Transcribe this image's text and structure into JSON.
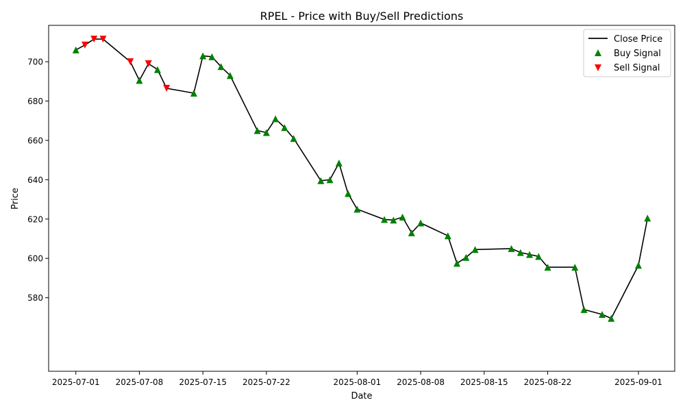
{
  "chart_data": {
    "type": "line",
    "title": "RPEL - Price with Buy/Sell Predictions",
    "xlabel": "Date",
    "ylabel": "Price",
    "xlim": [
      "2025-06-28",
      "2025-09-05"
    ],
    "ylim": [
      542.6,
      718.5
    ],
    "x_ticks": [
      "2025-07-01",
      "2025-07-08",
      "2025-07-15",
      "2025-07-22",
      "2025-08-01",
      "2025-08-08",
      "2025-08-15",
      "2025-08-22",
      "2025-09-01"
    ],
    "y_ticks": [
      580,
      600,
      620,
      640,
      660,
      680,
      700
    ],
    "grid": false,
    "legend": {
      "position": "upper right",
      "entries": [
        "Close Price",
        "Buy Signal",
        "Sell Signal"
      ]
    },
    "colors": {
      "line": "#000000",
      "buy": "#008000",
      "sell": "#ff0000"
    },
    "series": [
      {
        "name": "Close Price",
        "points": [
          {
            "date": "2025-07-01",
            "price": 706.0,
            "signal": "buy"
          },
          {
            "date": "2025-07-02",
            "price": 708.5,
            "signal": "sell"
          },
          {
            "date": "2025-07-03",
            "price": 711.5,
            "signal": "sell"
          },
          {
            "date": "2025-07-04",
            "price": 711.5,
            "signal": "sell"
          },
          {
            "date": "2025-07-07",
            "price": 700.0,
            "signal": "sell"
          },
          {
            "date": "2025-07-08",
            "price": 690.5,
            "signal": "buy"
          },
          {
            "date": "2025-07-09",
            "price": 699.0,
            "signal": "sell"
          },
          {
            "date": "2025-07-10",
            "price": 696.0,
            "signal": "buy"
          },
          {
            "date": "2025-07-11",
            "price": 686.5,
            "signal": "sell"
          },
          {
            "date": "2025-07-14",
            "price": 684.0,
            "signal": "buy"
          },
          {
            "date": "2025-07-15",
            "price": 703.0,
            "signal": "buy"
          },
          {
            "date": "2025-07-16",
            "price": 702.5,
            "signal": "buy"
          },
          {
            "date": "2025-07-17",
            "price": 697.5,
            "signal": "buy"
          },
          {
            "date": "2025-07-18",
            "price": 693.0,
            "signal": "buy"
          },
          {
            "date": "2025-07-21",
            "price": 665.0,
            "signal": "buy"
          },
          {
            "date": "2025-07-22",
            "price": 664.0,
            "signal": "buy"
          },
          {
            "date": "2025-07-23",
            "price": 671.0,
            "signal": "buy"
          },
          {
            "date": "2025-07-24",
            "price": 666.5,
            "signal": "buy"
          },
          {
            "date": "2025-07-25",
            "price": 661.0,
            "signal": "buy"
          },
          {
            "date": "2025-07-28",
            "price": 639.5,
            "signal": "buy"
          },
          {
            "date": "2025-07-29",
            "price": 640.0,
            "signal": "buy"
          },
          {
            "date": "2025-07-30",
            "price": 648.5,
            "signal": "buy"
          },
          {
            "date": "2025-07-31",
            "price": 633.0,
            "signal": "buy"
          },
          {
            "date": "2025-08-01",
            "price": 625.0,
            "signal": "buy"
          },
          {
            "date": "2025-08-04",
            "price": 619.8,
            "signal": "buy"
          },
          {
            "date": "2025-08-05",
            "price": 619.5,
            "signal": "buy"
          },
          {
            "date": "2025-08-06",
            "price": 621.0,
            "signal": "buy"
          },
          {
            "date": "2025-08-07",
            "price": 613.0,
            "signal": "buy"
          },
          {
            "date": "2025-08-08",
            "price": 618.0,
            "signal": "buy"
          },
          {
            "date": "2025-08-11",
            "price": 611.5,
            "signal": "buy"
          },
          {
            "date": "2025-08-12",
            "price": 597.5,
            "signal": "buy"
          },
          {
            "date": "2025-08-13",
            "price": 600.5,
            "signal": "buy"
          },
          {
            "date": "2025-08-14",
            "price": 604.5,
            "signal": "buy"
          },
          {
            "date": "2025-08-18",
            "price": 605.0,
            "signal": "buy"
          },
          {
            "date": "2025-08-19",
            "price": 603.0,
            "signal": "buy"
          },
          {
            "date": "2025-08-20",
            "price": 602.0,
            "signal": "buy"
          },
          {
            "date": "2025-08-21",
            "price": 601.0,
            "signal": "buy"
          },
          {
            "date": "2025-08-22",
            "price": 595.5,
            "signal": "buy"
          },
          {
            "date": "2025-08-25",
            "price": 595.5,
            "signal": "buy"
          },
          {
            "date": "2025-08-26",
            "price": 574.0,
            "signal": "buy"
          },
          {
            "date": "2025-08-28",
            "price": 571.5,
            "signal": "buy"
          },
          {
            "date": "2025-08-29",
            "price": 569.5,
            "signal": "buy"
          },
          {
            "date": "2025-09-01",
            "price": 596.5,
            "signal": "buy"
          },
          {
            "date": "2025-09-02",
            "price": 620.5,
            "signal": "buy"
          }
        ]
      }
    ]
  }
}
